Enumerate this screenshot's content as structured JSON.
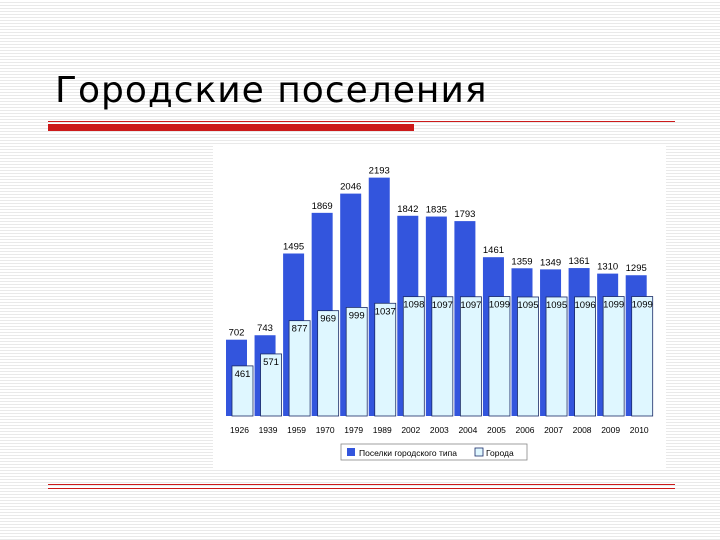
{
  "slide": {
    "title": "Городские поселения"
  },
  "colors": {
    "series1": "#3355dd",
    "series2": "#dff7ff",
    "series2_stroke": "#1a2a66",
    "accent": "#cc1a1a"
  },
  "chart_data": {
    "type": "bar",
    "categories": [
      "1926",
      "1939",
      "1959",
      "1970",
      "1979",
      "1989",
      "2002",
      "2003",
      "2004",
      "2005",
      "2006",
      "2007",
      "2008",
      "2009",
      "2010"
    ],
    "series": [
      {
        "name": "Поселки городского типа",
        "values": [
          702,
          743,
          1495,
          1869,
          2046,
          2193,
          1842,
          1835,
          1793,
          1461,
          1359,
          1349,
          1361,
          1310,
          1295
        ]
      },
      {
        "name": "Города",
        "values": [
          461,
          571,
          877,
          969,
          999,
          1037,
          1098,
          1097,
          1097,
          1099,
          1095,
          1095,
          1096,
          1099,
          1099
        ]
      }
    ],
    "ylim": [
      0,
      2300
    ],
    "grid": false,
    "legend_position": "bottom"
  }
}
